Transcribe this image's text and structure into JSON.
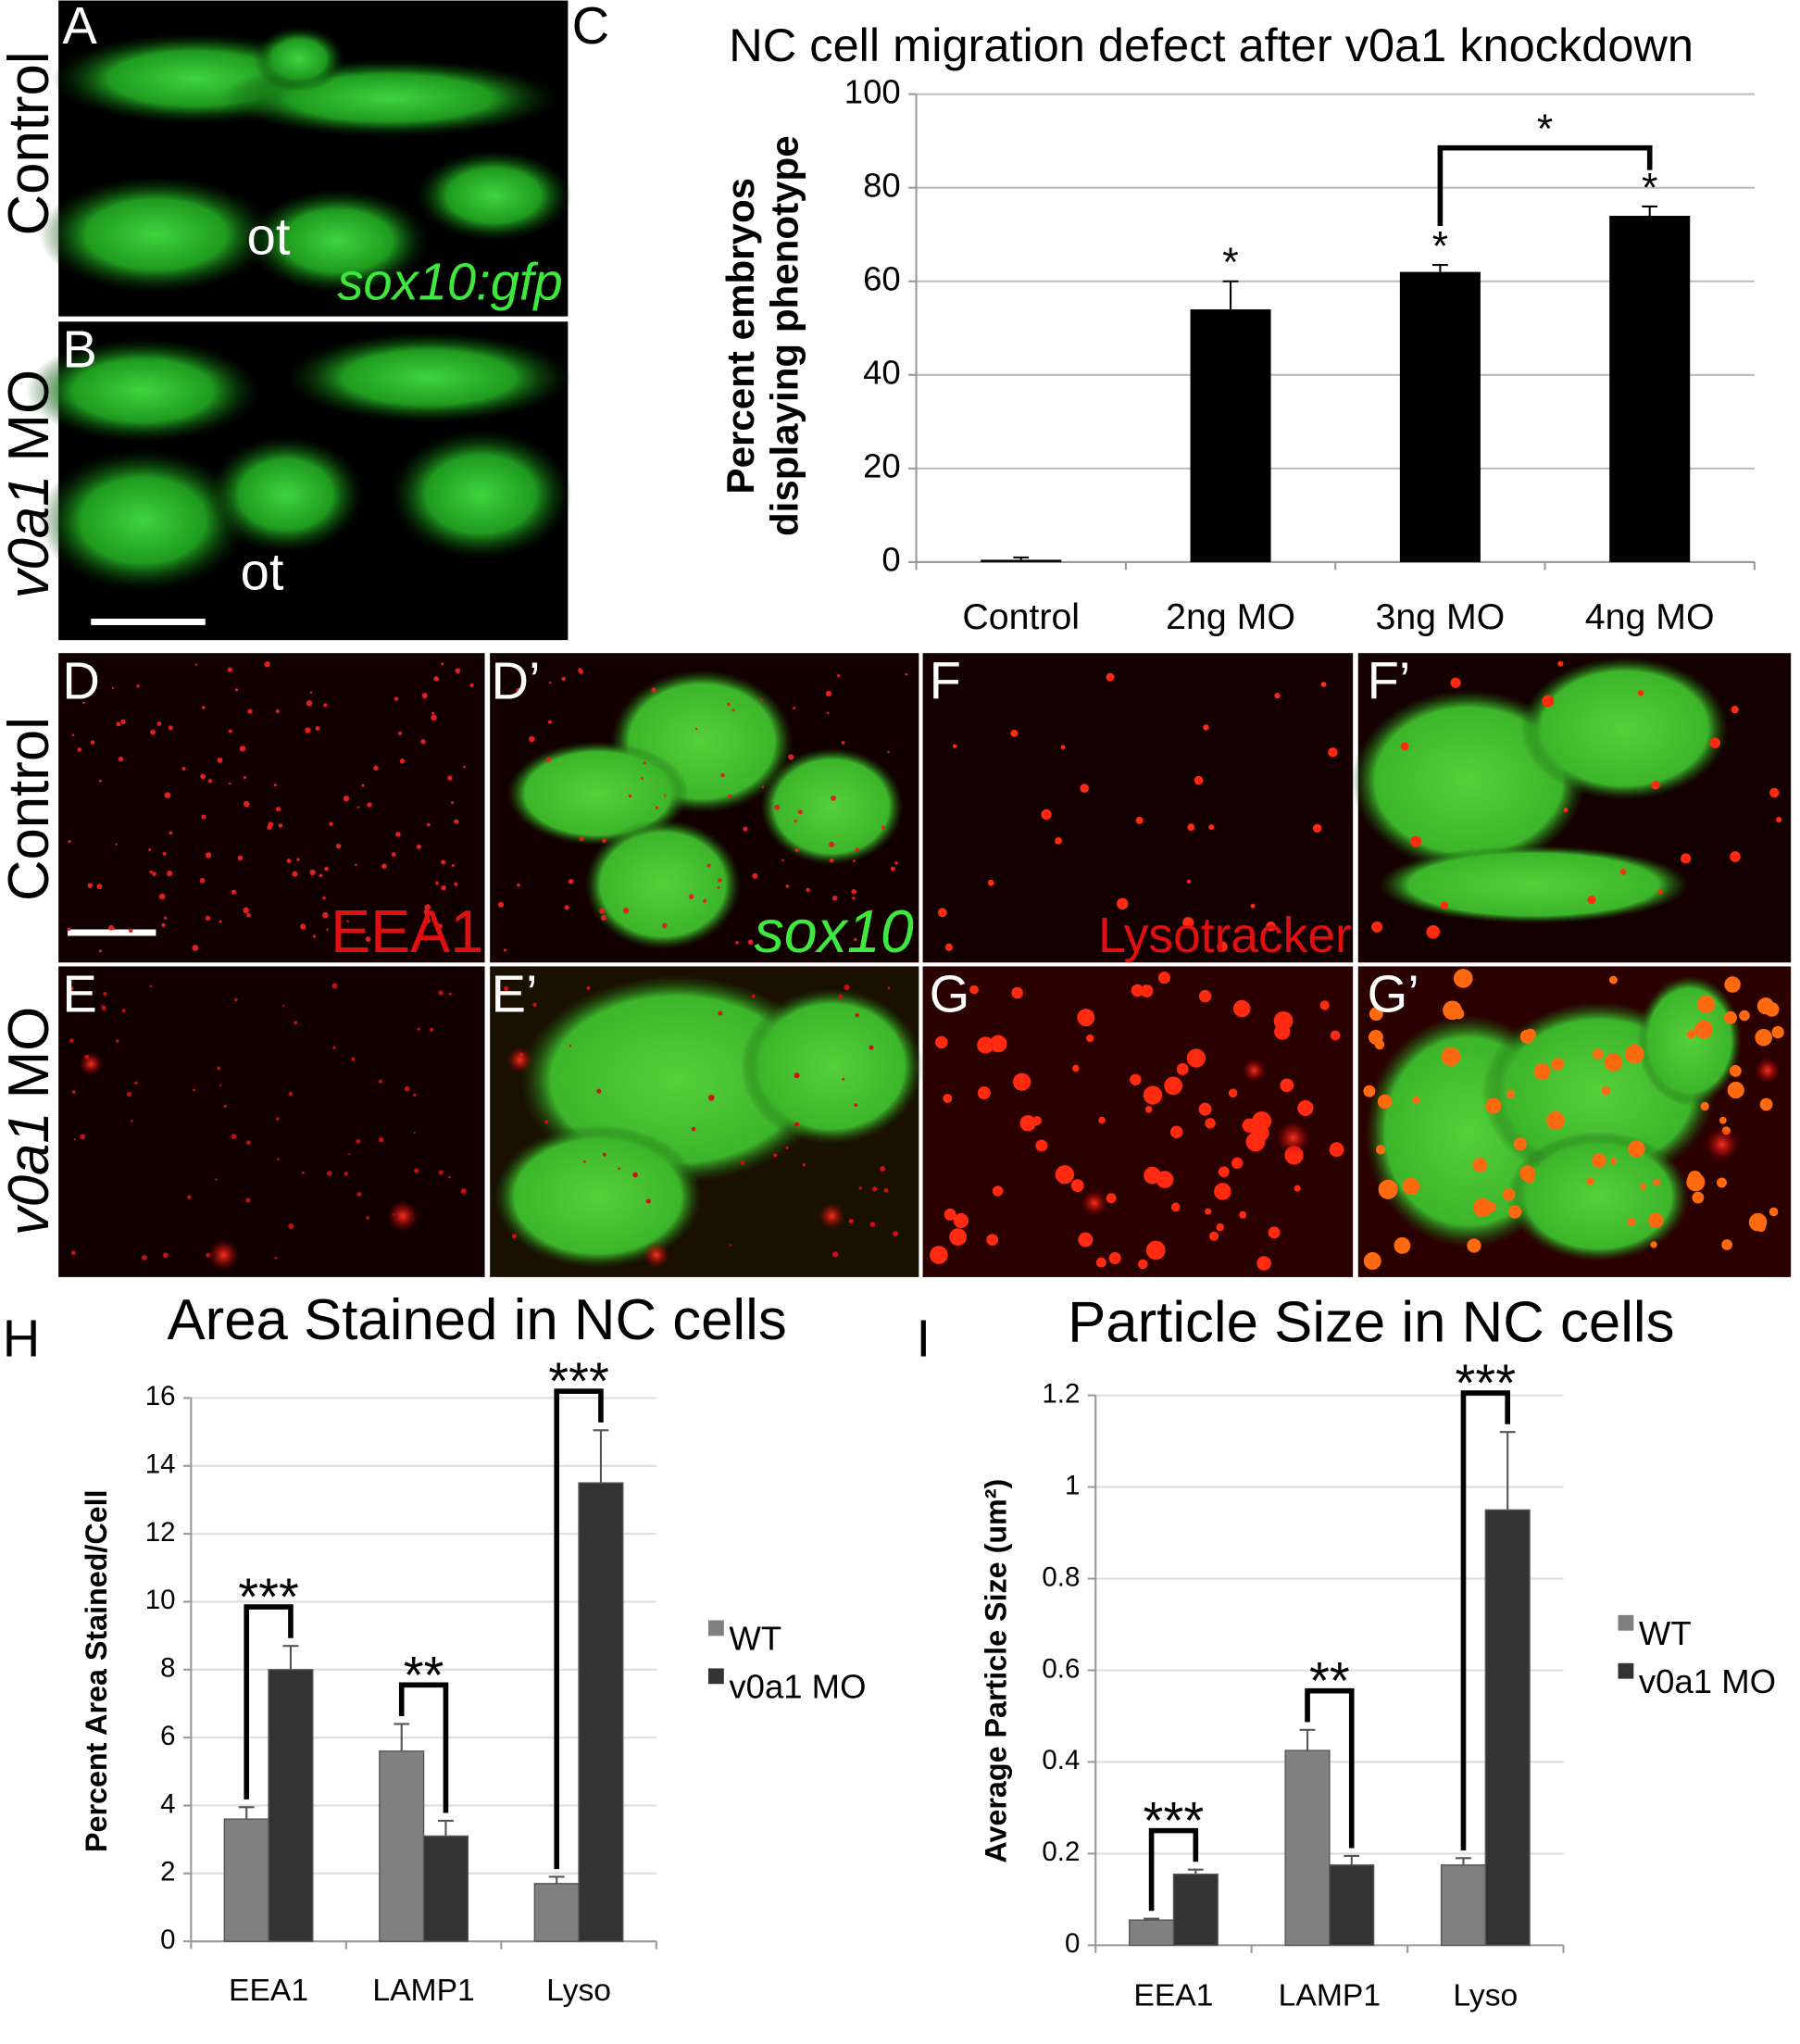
{
  "panel_letters": [
    "A",
    "B",
    "C",
    "D",
    "D’",
    "E",
    "E’",
    "F",
    "F’",
    "G",
    "G’",
    "H",
    "I"
  ],
  "rows": [
    {
      "text": "Control"
    },
    {
      "gene": "v0a1",
      "rest": "MO"
    },
    {
      "text": "Control"
    },
    {
      "gene": "v0a1",
      "rest": "MO"
    }
  ],
  "image_labels": [
    "ot",
    "sox10:gfp",
    "ot",
    "EEA1",
    "sox10",
    "Lysotracker"
  ],
  "chart_data": [
    {
      "type": "bar",
      "title": "NC cell migration defect after v0a1 knockdown",
      "y_label": [
        "Percent embryos",
        "displaying phenotype"
      ],
      "categories": [
        "Control",
        "2ng MO",
        "3ng MO",
        "4ng MO"
      ],
      "values": [
        0.5,
        54,
        62,
        74
      ],
      "errors": [
        0.5,
        6,
        1.5,
        2
      ],
      "color": "#000000",
      "ylim": [
        0,
        100
      ],
      "yticks": [
        0,
        20,
        40,
        60,
        80,
        100
      ],
      "grid": true,
      "significance": [
        null,
        "*",
        "*",
        "*"
      ],
      "bracket_label": "*"
    },
    {
      "type": "bar",
      "title": "Area Stained in NC cells",
      "y_label": "Percent Area Stained/Cell",
      "categories": [
        "EEA1",
        "LAMP1",
        "Lyso"
      ],
      "series": [
        {
          "name": "WT",
          "color": "#808080",
          "values": [
            3.6,
            5.6,
            1.7
          ],
          "errors": [
            0.35,
            0.8,
            0.2
          ]
        },
        {
          "name": "v0a1 MO",
          "color": "#333333",
          "values": [
            8.0,
            3.1,
            13.5
          ],
          "errors": [
            0.7,
            0.45,
            1.55
          ]
        }
      ],
      "ylim": [
        0,
        16
      ],
      "yticks": [
        0,
        2,
        4,
        6,
        8,
        10,
        12,
        14,
        16
      ],
      "grid": true,
      "legend": "right",
      "significance": [
        "***",
        "**",
        "***"
      ]
    },
    {
      "type": "bar",
      "title": "Particle Size in NC cells",
      "y_label": "Average Particle Size (um²)",
      "categories": [
        "EEA1",
        "LAMP1",
        "Lyso"
      ],
      "series": [
        {
          "name": "WT",
          "color": "#808080",
          "values": [
            0.055,
            0.425,
            0.175
          ],
          "errors": [
            0.003,
            0.045,
            0.015
          ]
        },
        {
          "name": "v0a1 MO",
          "color": "#333333",
          "values": [
            0.155,
            0.175,
            0.95
          ],
          "errors": [
            0.01,
            0.02,
            0.17
          ]
        }
      ],
      "ylim": [
        0,
        1.2
      ],
      "yticks": [
        0,
        0.2,
        0.4,
        0.6,
        0.8,
        1,
        1.2
      ],
      "grid": true,
      "legend": "right",
      "significance": [
        "***",
        "**",
        "***"
      ]
    }
  ]
}
